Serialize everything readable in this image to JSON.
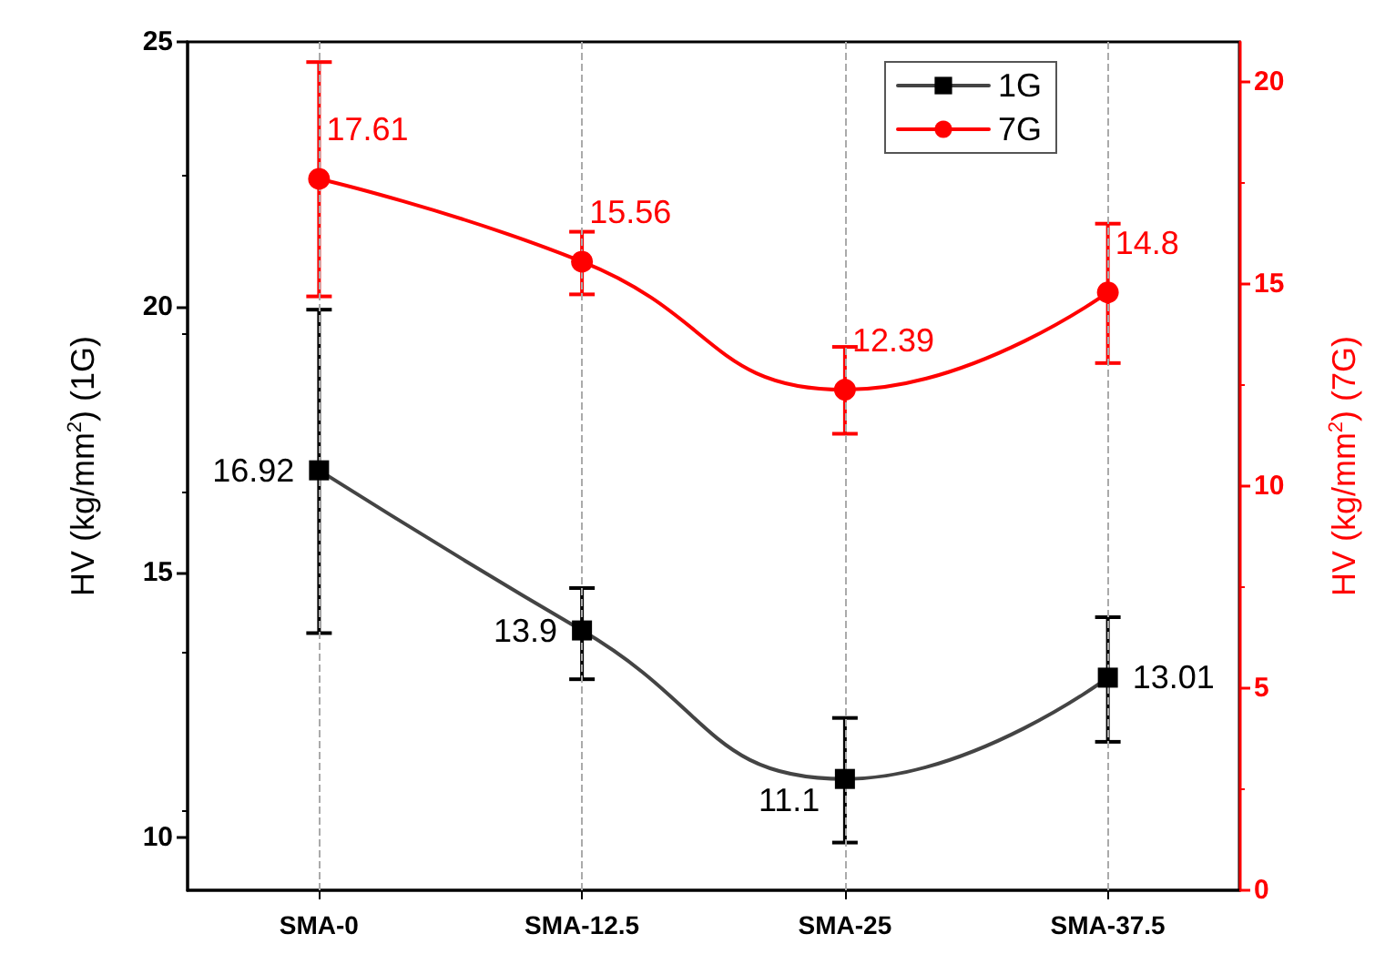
{
  "chart_data": {
    "type": "line",
    "ylabel": "HV (kg/mm$^{2}$) (1G)",
    "y2label": "HV (kg/mm$^{2}$) (7G)",
    "categories": [
      "SMA-0",
      "SMA-12.5",
      "SMA-25",
      "SMA-37.5"
    ],
    "series": [
      {
        "name": "1G",
        "color": "#000000",
        "marker": "square",
        "values": [
          16.92,
          13.9,
          11.1,
          13.01
        ],
        "errors": [
          [
            13.85,
            19.95
          ],
          [
            12.98,
            14.7
          ],
          [
            9.9,
            12.25
          ],
          [
            11.8,
            14.15
          ]
        ]
      },
      {
        "name": "7G",
        "color": "#ff0000",
        "marker": "circle",
        "axis": "y2",
        "values": [
          17.61,
          15.56,
          12.39,
          14.8
        ],
        "errors": [
          [
            14.7,
            20.5
          ],
          [
            14.75,
            16.3
          ],
          [
            11.3,
            13.45
          ],
          [
            13.05,
            16.5
          ]
        ]
      }
    ],
    "ylim": [
      9,
      25
    ],
    "yticks": [
      10,
      15,
      20,
      25
    ],
    "y2lim": [
      0,
      21
    ],
    "y2ticks": [
      0,
      5,
      10,
      15,
      20
    ],
    "grid": "x",
    "legend": "top right",
    "data_labels": true
  }
}
